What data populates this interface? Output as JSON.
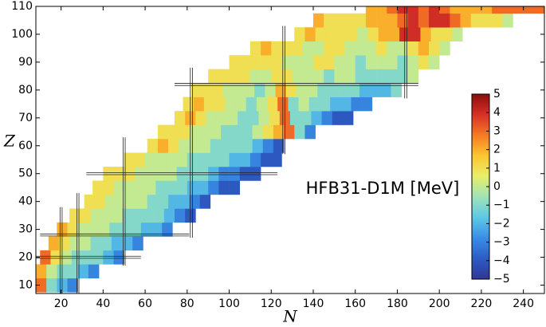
{
  "chart_data": {
    "type": "heatmap",
    "xlabel": "N",
    "ylabel": "Z",
    "annotation": "HFB31-D1M [MeV]",
    "xlim": [
      8,
      250
    ],
    "ylim": [
      7,
      110
    ],
    "xticks": [
      20,
      40,
      60,
      80,
      100,
      120,
      140,
      160,
      180,
      200,
      220,
      240
    ],
    "yticks": [
      10,
      20,
      30,
      40,
      50,
      60,
      70,
      80,
      90,
      100,
      110
    ],
    "cell_width": 5,
    "cell_height": 5,
    "magic_n": [
      20,
      28,
      50,
      82,
      126,
      184
    ],
    "magic_z": [
      20,
      28,
      50,
      82
    ],
    "colormap": [
      "#313695",
      "#2c5cc5",
      "#3a8ee6",
      "#5ec8e5",
      "#9ee3b8",
      "#e8ef6a",
      "#fcc630",
      "#f57a24",
      "#d73027",
      "#8b0e0e"
    ],
    "clim": [
      -5,
      5
    ],
    "cticks": [
      {
        "value": -5,
        "label": "−5"
      },
      {
        "value": -4,
        "label": "−4"
      },
      {
        "value": -3,
        "label": "−3"
      },
      {
        "value": -2,
        "label": "−2"
      },
      {
        "value": -1,
        "label": "−1"
      },
      0,
      1,
      2,
      3,
      4,
      5
    ],
    "rows": [
      {
        "z": 10,
        "n_start": 8,
        "values": [
          3,
          -1,
          -2,
          -3
        ]
      },
      {
        "z": 15,
        "n_start": 8,
        "values": [
          2,
          0,
          -1,
          -1,
          -2,
          -3
        ]
      },
      {
        "z": 20,
        "n_start": 10,
        "values": [
          3,
          1,
          0,
          -1,
          -1,
          -1,
          -2,
          -3
        ]
      },
      {
        "z": 25,
        "n_start": 14,
        "values": [
          2,
          1,
          0,
          0,
          -1,
          -1,
          -2,
          -2,
          -3
        ]
      },
      {
        "z": 30,
        "n_start": 18,
        "values": [
          2,
          1,
          0,
          0,
          0,
          -1,
          -1,
          -1,
          -2,
          -2,
          -3
        ]
      },
      {
        "z": 35,
        "n_start": 24,
        "values": [
          1,
          1,
          0,
          0,
          0,
          -1,
          -1,
          -1,
          -1,
          -2,
          -3,
          -4
        ]
      },
      {
        "z": 40,
        "n_start": 31,
        "values": [
          1,
          1,
          0,
          0,
          0,
          0,
          -1,
          -1,
          -2,
          -2,
          -3,
          -4
        ]
      },
      {
        "z": 45,
        "n_start": 35,
        "values": [
          1,
          1,
          0,
          0,
          0,
          0,
          -1,
          -1,
          -1,
          -2,
          -2,
          -3,
          -4,
          -4
        ]
      },
      {
        "z": 50,
        "n_start": 40,
        "values": [
          1,
          1,
          1,
          0,
          0,
          0,
          0,
          -1,
          -1,
          -1,
          -2,
          -3,
          -3,
          -4,
          -4
        ]
      },
      {
        "z": 55,
        "n_start": 50,
        "values": [
          1,
          1,
          0,
          0,
          0,
          0,
          -1,
          -1,
          -1,
          -1,
          -2,
          -2,
          -3,
          -4,
          -4
        ]
      },
      {
        "z": 60,
        "n_start": 61,
        "values": [
          1,
          2,
          1,
          0,
          0,
          0,
          -1,
          -1,
          -1,
          -1,
          -2,
          -3,
          -4
        ]
      },
      {
        "z": 65,
        "n_start": 66,
        "values": [
          1,
          1,
          1,
          0,
          0,
          0,
          -1,
          -1,
          -1,
          0,
          1,
          2,
          3,
          -1,
          -3
        ]
      },
      {
        "z": 70,
        "n_start": 74,
        "values": [
          1,
          2,
          1,
          0,
          0,
          0,
          -1,
          -1,
          0,
          1,
          3,
          -1,
          -1,
          -2,
          -3,
          -4,
          -4
        ]
      },
      {
        "z": 75,
        "n_start": 78,
        "values": [
          1,
          2,
          1,
          1,
          0,
          0,
          -1,
          0,
          1,
          3,
          -1,
          0,
          -1,
          -1,
          -2,
          -2,
          -3,
          -3
        ]
      },
      {
        "z": 80,
        "n_start": 82,
        "values": [
          1,
          1,
          1,
          0,
          0,
          0,
          -1,
          0,
          2,
          1,
          0,
          0,
          -1,
          -1,
          -1,
          -1,
          -2,
          -2,
          -2,
          -1
        ]
      },
      {
        "z": 85,
        "n_start": 90,
        "values": [
          1,
          1,
          1,
          1,
          0,
          0,
          1,
          1,
          0,
          0,
          0,
          -1,
          0,
          0,
          -1,
          -1,
          -1,
          -1,
          -1,
          0
        ]
      },
      {
        "z": 90,
        "n_start": 100,
        "values": [
          1,
          1,
          1,
          1,
          1,
          0,
          0,
          0,
          1,
          1,
          0,
          0,
          -1,
          0,
          0,
          0,
          -1,
          0,
          1,
          0
        ]
      },
      {
        "z": 95,
        "n_start": 110,
        "values": [
          1,
          2,
          1,
          1,
          1,
          0,
          0,
          1,
          1,
          0,
          0,
          0,
          1,
          0,
          0,
          1,
          2,
          1,
          0
        ]
      },
      {
        "z": 100,
        "n_start": 131,
        "values": [
          1,
          2,
          1,
          1,
          1,
          1,
          0,
          1,
          2,
          2,
          4,
          4,
          2,
          1,
          1,
          0
        ]
      },
      {
        "z": 105,
        "n_start": 140,
        "values": [
          2,
          1,
          1,
          1,
          1,
          2,
          2,
          2,
          3,
          4,
          3,
          4,
          4,
          3,
          2,
          1,
          1,
          1,
          0
        ]
      },
      {
        "z": 110,
        "n_start": 165,
        "values": [
          2,
          2,
          3,
          4,
          4,
          3,
          4,
          3,
          2,
          2,
          2,
          2,
          3,
          3,
          3,
          3,
          3
        ]
      }
    ]
  }
}
